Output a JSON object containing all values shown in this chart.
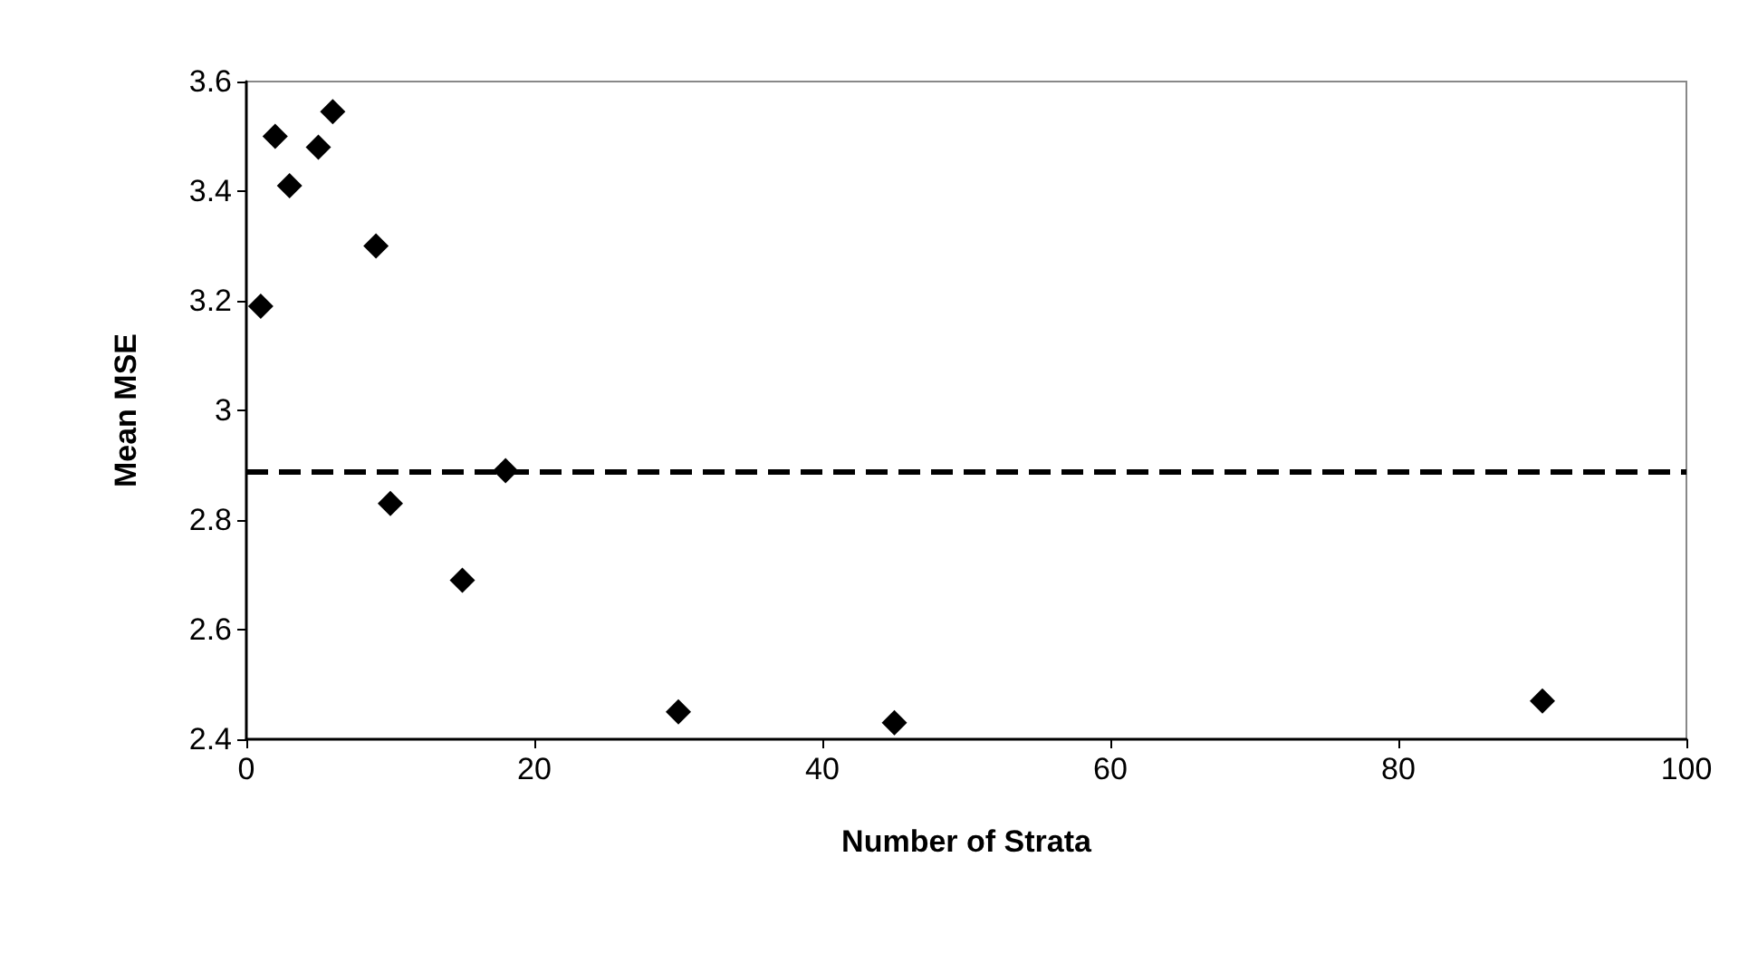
{
  "chart_data": {
    "type": "scatter",
    "xlabel": "Number of Strata",
    "ylabel": "Mean MSE",
    "x": [
      1,
      2,
      3,
      5,
      6,
      9,
      10,
      15,
      18,
      30,
      45,
      90
    ],
    "series": [
      {
        "color": "#000000",
        "values": [
          3.19,
          3.5,
          3.41,
          3.48,
          3.545,
          3.3,
          2.83,
          2.69,
          2.89,
          2.45,
          2.43,
          2.47
        ]
      }
    ],
    "xlim": [
      0,
      100
    ],
    "xticks": [
      0,
      20,
      40,
      60,
      80,
      100
    ],
    "ylim": [
      2.4,
      3.6
    ],
    "yticks": [
      2.4,
      2.6,
      2.8,
      3,
      3.2,
      3.4,
      3.6
    ],
    "ref_lines": [
      {
        "axis": "y",
        "value": 2.89,
        "color": "#000000",
        "line_style": "dashed"
      }
    ],
    "grid": false,
    "marker": "diamond"
  }
}
